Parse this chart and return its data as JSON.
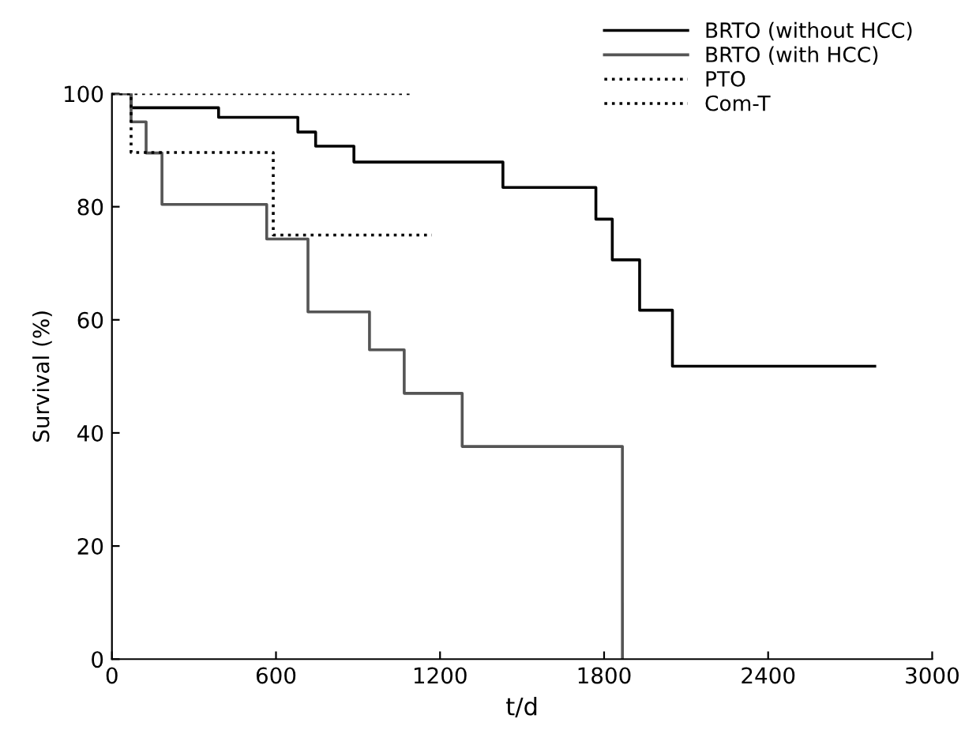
{
  "chart_data": {
    "type": "step",
    "xlabel": "t/d",
    "ylabel": "Survival (%)",
    "xlim": [
      0,
      3000
    ],
    "xticks": [
      0,
      600,
      1200,
      1800,
      2400,
      3000
    ],
    "ylim": [
      0,
      100
    ],
    "yticks": [
      0,
      20,
      40,
      60,
      80,
      100
    ],
    "grid": false,
    "legend": "top right",
    "marker": "none",
    "series": [
      {
        "name": "BRTO (without HCC)",
        "color": "#000000",
        "line_style": "solid",
        "x": [
          0,
          70,
          390,
          680,
          745,
          885,
          1430,
          1770,
          1830,
          1930,
          2050,
          2790
        ],
        "values": [
          100,
          97.5,
          95.8,
          93.2,
          90.7,
          87.9,
          83.4,
          77.8,
          70.6,
          61.7,
          51.8,
          51.8
        ]
      },
      {
        "name": "BRTO (with HCC)",
        "color": "#555555",
        "line_style": "solid",
        "x": [
          0,
          70,
          125,
          183,
          566,
          717,
          942,
          1069,
          1281,
          1867
        ],
        "values": [
          100,
          95,
          89.5,
          80.4,
          74.3,
          61.4,
          54.7,
          47,
          37.6,
          0
        ]
      },
      {
        "name": "PTO",
        "color": "#000000",
        "line_style": "dotted",
        "x": [
          0,
          1100
        ],
        "values": [
          100,
          100
        ]
      },
      {
        "name": "Com-T",
        "color": "#000000",
        "line_style": "dotted",
        "x": [
          0,
          70,
          590,
          1170
        ],
        "values": [
          100,
          89.6,
          75,
          75
        ]
      }
    ]
  }
}
